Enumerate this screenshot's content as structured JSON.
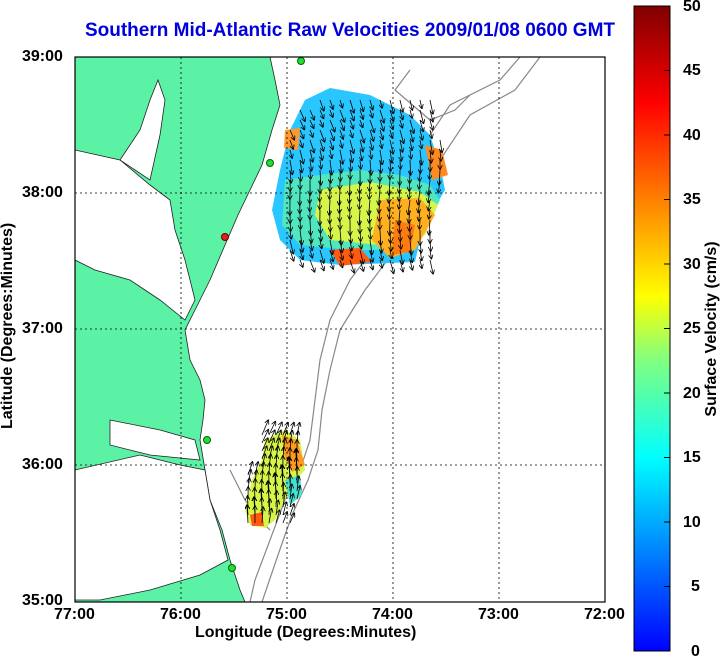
{
  "title": "Southern Mid-Atlantic Raw Velocities 2009/01/08 0600 GMT",
  "chart_data": {
    "type": "heatmap",
    "title": "Southern Mid-Atlantic Raw Velocities 2009/01/08 0600 GMT",
    "xlabel": "Longitude (Degrees:Minutes)",
    "ylabel": "Latitude (Degrees:Minutes)",
    "colorbar_label": "Surface Velocity (cm/s)",
    "x_ticks": [
      "77:00",
      "76:00",
      "75:00",
      "74:00",
      "73:00",
      "72:00"
    ],
    "y_ticks": [
      "39:00",
      "38:00",
      "37:00",
      "36:00",
      "35:00"
    ],
    "colorbar_ticks": [
      "50",
      "45",
      "40",
      "35",
      "30",
      "25",
      "20",
      "15",
      "10",
      "5",
      "0"
    ],
    "xlim": [
      -77,
      -72
    ],
    "ylim": [
      35,
      39
    ],
    "colorbar_range": [
      0,
      50
    ],
    "grid": true,
    "colormap": "jet",
    "land_color": "#5cf2a6",
    "regions": [
      {
        "name": "northern",
        "lon_range": [
          -75.1,
          -73.5
        ],
        "lat_range": [
          37.5,
          38.8
        ],
        "velocity_range": [
          5,
          40
        ]
      },
      {
        "name": "southern",
        "lon_range": [
          -75.4,
          -74.9
        ],
        "lat_range": [
          35.6,
          36.5
        ],
        "velocity_range": [
          15,
          38
        ]
      }
    ]
  }
}
